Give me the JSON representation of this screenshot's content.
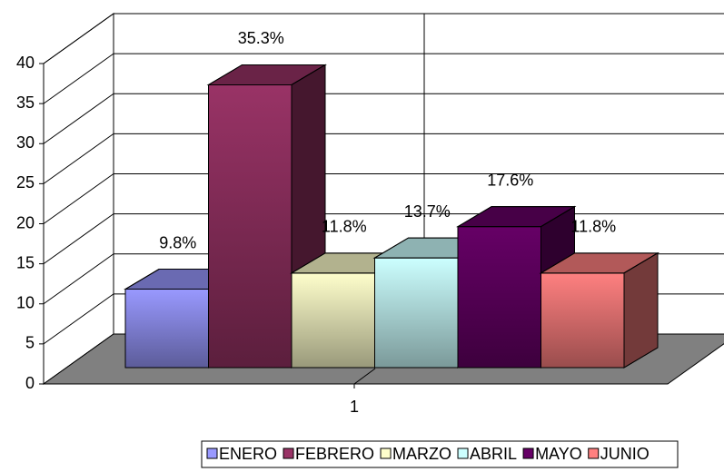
{
  "chart_data": {
    "type": "bar3d",
    "categories": [
      "1"
    ],
    "series": [
      {
        "name": "ENERO",
        "color": "#9999ff",
        "values": [
          9.8
        ],
        "value_labels": [
          "9.8%"
        ]
      },
      {
        "name": "FEBRERO",
        "color": "#993366",
        "values": [
          35.3
        ],
        "value_labels": [
          "35.3%"
        ]
      },
      {
        "name": "MARZO",
        "color": "#ffffcc",
        "values": [
          11.8
        ],
        "value_labels": [
          "11.8%"
        ]
      },
      {
        "name": "ABRIL",
        "color": "#ccffff",
        "values": [
          13.7
        ],
        "value_labels": [
          "13.7%"
        ]
      },
      {
        "name": "MAYO",
        "color": "#660066",
        "values": [
          17.6
        ],
        "value_labels": [
          "17.6%"
        ]
      },
      {
        "name": "JUNIO",
        "color": "#ff8080",
        "values": [
          11.8
        ],
        "value_labels": [
          "11.8%"
        ]
      }
    ],
    "ylim": [
      0,
      40
    ],
    "yticks": [
      0,
      5,
      10,
      15,
      20,
      25,
      30,
      35,
      40
    ],
    "grid": true,
    "legend": "bottom"
  }
}
